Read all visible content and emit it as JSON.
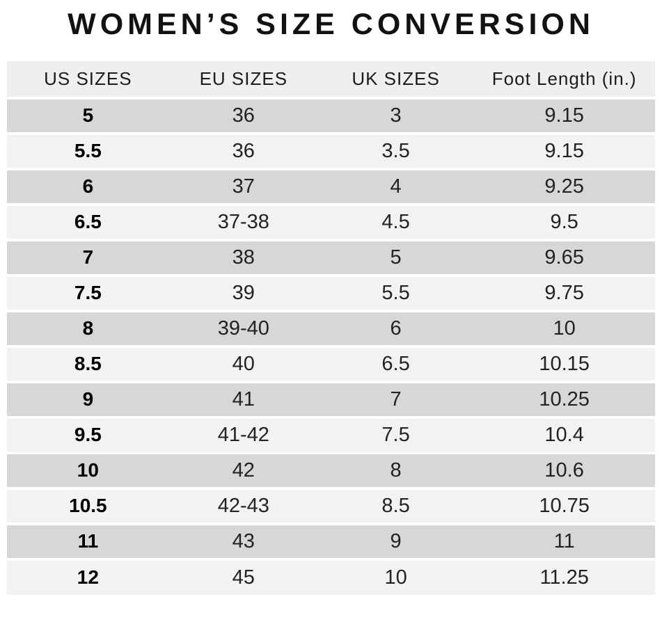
{
  "chart_data": {
    "type": "table",
    "title": "WOMEN’S SIZE CONVERSION",
    "columns": [
      "US SIZES",
      "EU SIZES",
      "UK SIZES",
      "Foot Length (in.)"
    ],
    "rows": [
      [
        "5",
        "36",
        "3",
        "9.15"
      ],
      [
        "5.5",
        "36",
        "3.5",
        "9.15"
      ],
      [
        "6",
        "37",
        "4",
        "9.25"
      ],
      [
        "6.5",
        "37-38",
        "4.5",
        "9.5"
      ],
      [
        "7",
        "38",
        "5",
        "9.65"
      ],
      [
        "7.5",
        "39",
        "5.5",
        "9.75"
      ],
      [
        "8",
        "39-40",
        "6",
        "10"
      ],
      [
        "8.5",
        "40",
        "6.5",
        "10.15"
      ],
      [
        "9",
        "41",
        "7",
        "10.25"
      ],
      [
        "9.5",
        "41-42",
        "7.5",
        "10.4"
      ],
      [
        "10",
        "42",
        "8",
        "10.6"
      ],
      [
        "10.5",
        "42-43",
        "8.5",
        "10.75"
      ],
      [
        "11",
        "43",
        "9",
        "11"
      ],
      [
        "12",
        "45",
        "10",
        "11.25"
      ]
    ]
  },
  "colors": {
    "row_dark": "#d8d7d7",
    "row_light": "#f3f2f2",
    "header_bg": "#f0efee",
    "title_text": "#121212"
  }
}
